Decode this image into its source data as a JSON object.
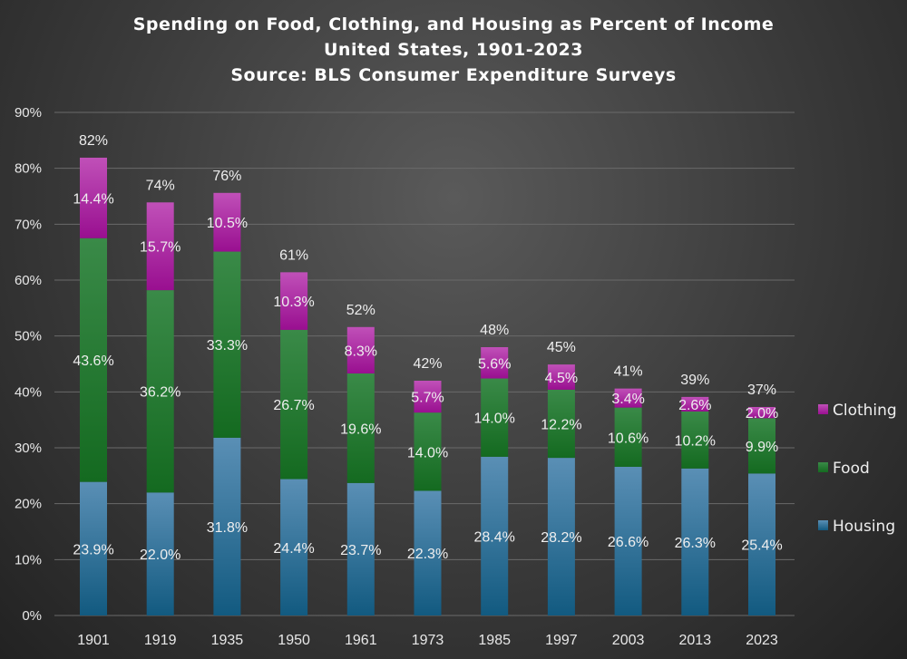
{
  "chart_data": {
    "type": "bar",
    "stacked": true,
    "title": [
      "Spending on Food, Clothing, and Housing as Percent of Income",
      "United States, 1901-2023",
      "Source: BLS Consumer Expenditure Surveys"
    ],
    "xlabel": "",
    "ylabel": "",
    "ylim": [
      0,
      90
    ],
    "yticks": [
      "0%",
      "10%",
      "20%",
      "30%",
      "40%",
      "50%",
      "60%",
      "70%",
      "80%",
      "90%"
    ],
    "grid": true,
    "legend_position": "right",
    "categories": [
      "1901",
      "1919",
      "1935",
      "1950",
      "1961",
      "1973",
      "1985",
      "1997",
      "2003",
      "2013",
      "2023"
    ],
    "series": [
      {
        "name": "Housing",
        "color": "#1f6a93",
        "values": [
          23.9,
          22.0,
          31.8,
          24.4,
          23.7,
          22.3,
          28.4,
          28.2,
          26.6,
          26.3,
          25.4
        ],
        "labels": [
          "23.9%",
          "22.0%",
          "31.8%",
          "24.4%",
          "23.7%",
          "22.3%",
          "28.4%",
          "28.2%",
          "26.6%",
          "26.3%",
          "25.4%"
        ]
      },
      {
        "name": "Food",
        "color": "#1e7a2c",
        "values": [
          43.6,
          36.2,
          33.3,
          26.7,
          19.6,
          14.0,
          14.0,
          12.2,
          10.6,
          10.2,
          9.9
        ],
        "labels": [
          "43.6%",
          "36.2%",
          "33.3%",
          "26.7%",
          "19.6%",
          "14.0%",
          "14.0%",
          "12.2%",
          "10.6%",
          "10.2%",
          "9.9%"
        ]
      },
      {
        "name": "Clothing",
        "color": "#a8189e",
        "values": [
          14.4,
          15.7,
          10.5,
          10.3,
          8.3,
          5.7,
          5.6,
          4.5,
          3.4,
          2.6,
          2.0
        ],
        "labels": [
          "14.4%",
          "15.7%",
          "10.5%",
          "10.3%",
          "8.3%",
          "5.7%",
          "5.6%",
          "4.5%",
          "3.4%",
          "2.6%",
          "2.0%"
        ]
      }
    ],
    "totals": [
      "82%",
      "74%",
      "76%",
      "61%",
      "52%",
      "42%",
      "48%",
      "45%",
      "41%",
      "39%",
      "37%"
    ],
    "legend_order": [
      "Clothing",
      "Food",
      "Housing"
    ]
  }
}
